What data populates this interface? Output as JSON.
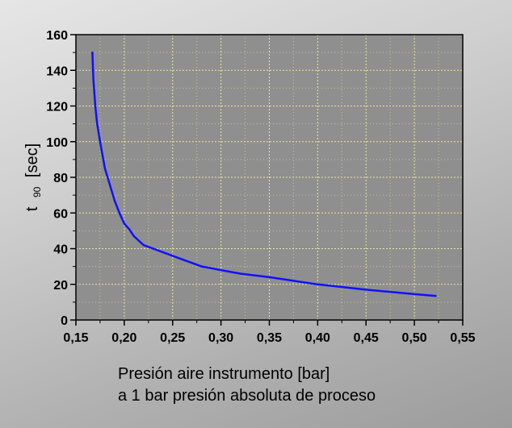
{
  "chart_data": {
    "type": "line",
    "title": "",
    "ylabel_main": "t",
    "ylabel_sub": "90",
    "ylabel_unit": "[sec]",
    "xlabel_line1": "Presión aire instrumento [bar]",
    "xlabel_line2": "a 1 bar presión absoluta de proceso",
    "xlim": [
      0.15,
      0.55
    ],
    "ylim": [
      0,
      160
    ],
    "x_ticks": [
      0.15,
      0.2,
      0.25,
      0.3,
      0.35,
      0.4,
      0.45,
      0.5,
      0.55
    ],
    "x_tick_labels": [
      "0,15",
      "0,20",
      "0,25",
      "0,30",
      "0,35",
      "0,40",
      "0,45",
      "0,50",
      "0,55"
    ],
    "y_ticks": [
      0,
      20,
      40,
      60,
      80,
      100,
      120,
      140,
      160
    ],
    "y_tick_labels": [
      "0",
      "20",
      "40",
      "60",
      "80",
      "100",
      "120",
      "140",
      "160"
    ],
    "grid": true,
    "line_color": "#1010ff",
    "series": [
      {
        "x": [
          0.167,
          0.168,
          0.17,
          0.172,
          0.175,
          0.18,
          0.185,
          0.19,
          0.195,
          0.2,
          0.205,
          0.21,
          0.22,
          0.23,
          0.24,
          0.25,
          0.26,
          0.27,
          0.28,
          0.29,
          0.3,
          0.32,
          0.35,
          0.4,
          0.45,
          0.5,
          0.522
        ],
        "y": [
          150,
          135,
          120,
          110,
          100,
          85,
          76,
          67,
          60,
          54,
          51,
          47,
          42,
          40,
          38,
          36,
          34,
          32,
          30,
          29,
          28,
          26,
          24,
          20,
          17,
          14.5,
          13.5
        ]
      }
    ]
  }
}
